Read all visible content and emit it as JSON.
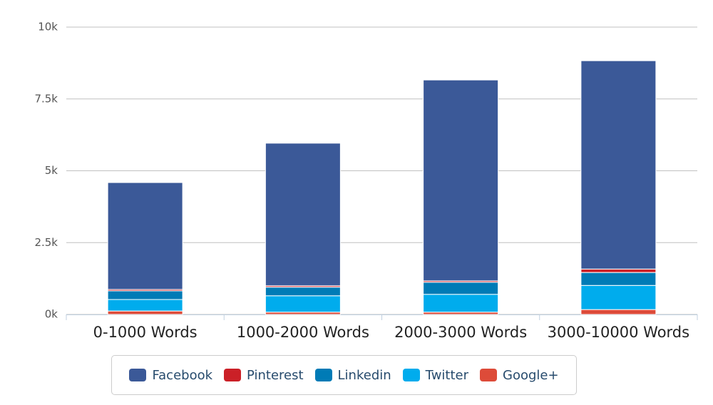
{
  "chart_data": {
    "type": "stacked-bar",
    "categories": [
      "0-1000 Words",
      "1000-2000 Words",
      "2000-3000 Words",
      "3000-10000 Words"
    ],
    "series": [
      {
        "name": "Facebook",
        "color": "#3b5998",
        "values": [
          3720,
          4960,
          6990,
          7250
        ]
      },
      {
        "name": "Pinterest",
        "color": "#cb2027",
        "values": [
          50,
          50,
          50,
          120
        ]
      },
      {
        "name": "Linkedin",
        "color": "#007bb6",
        "values": [
          300,
          300,
          420,
          450
        ]
      },
      {
        "name": "Twitter",
        "color": "#00aced",
        "values": [
          400,
          570,
          620,
          840
        ]
      },
      {
        "name": "Google+",
        "color": "#dd4b39",
        "values": [
          120,
          80,
          80,
          170
        ]
      }
    ],
    "ylim": [
      0,
      10000
    ],
    "yticks": [
      {
        "value": 0,
        "label": "0k"
      },
      {
        "value": 2500,
        "label": "2.5k"
      },
      {
        "value": 5000,
        "label": "5k"
      },
      {
        "value": 7500,
        "label": "7.5k"
      },
      {
        "value": 10000,
        "label": "10k"
      }
    ],
    "grid": true
  }
}
